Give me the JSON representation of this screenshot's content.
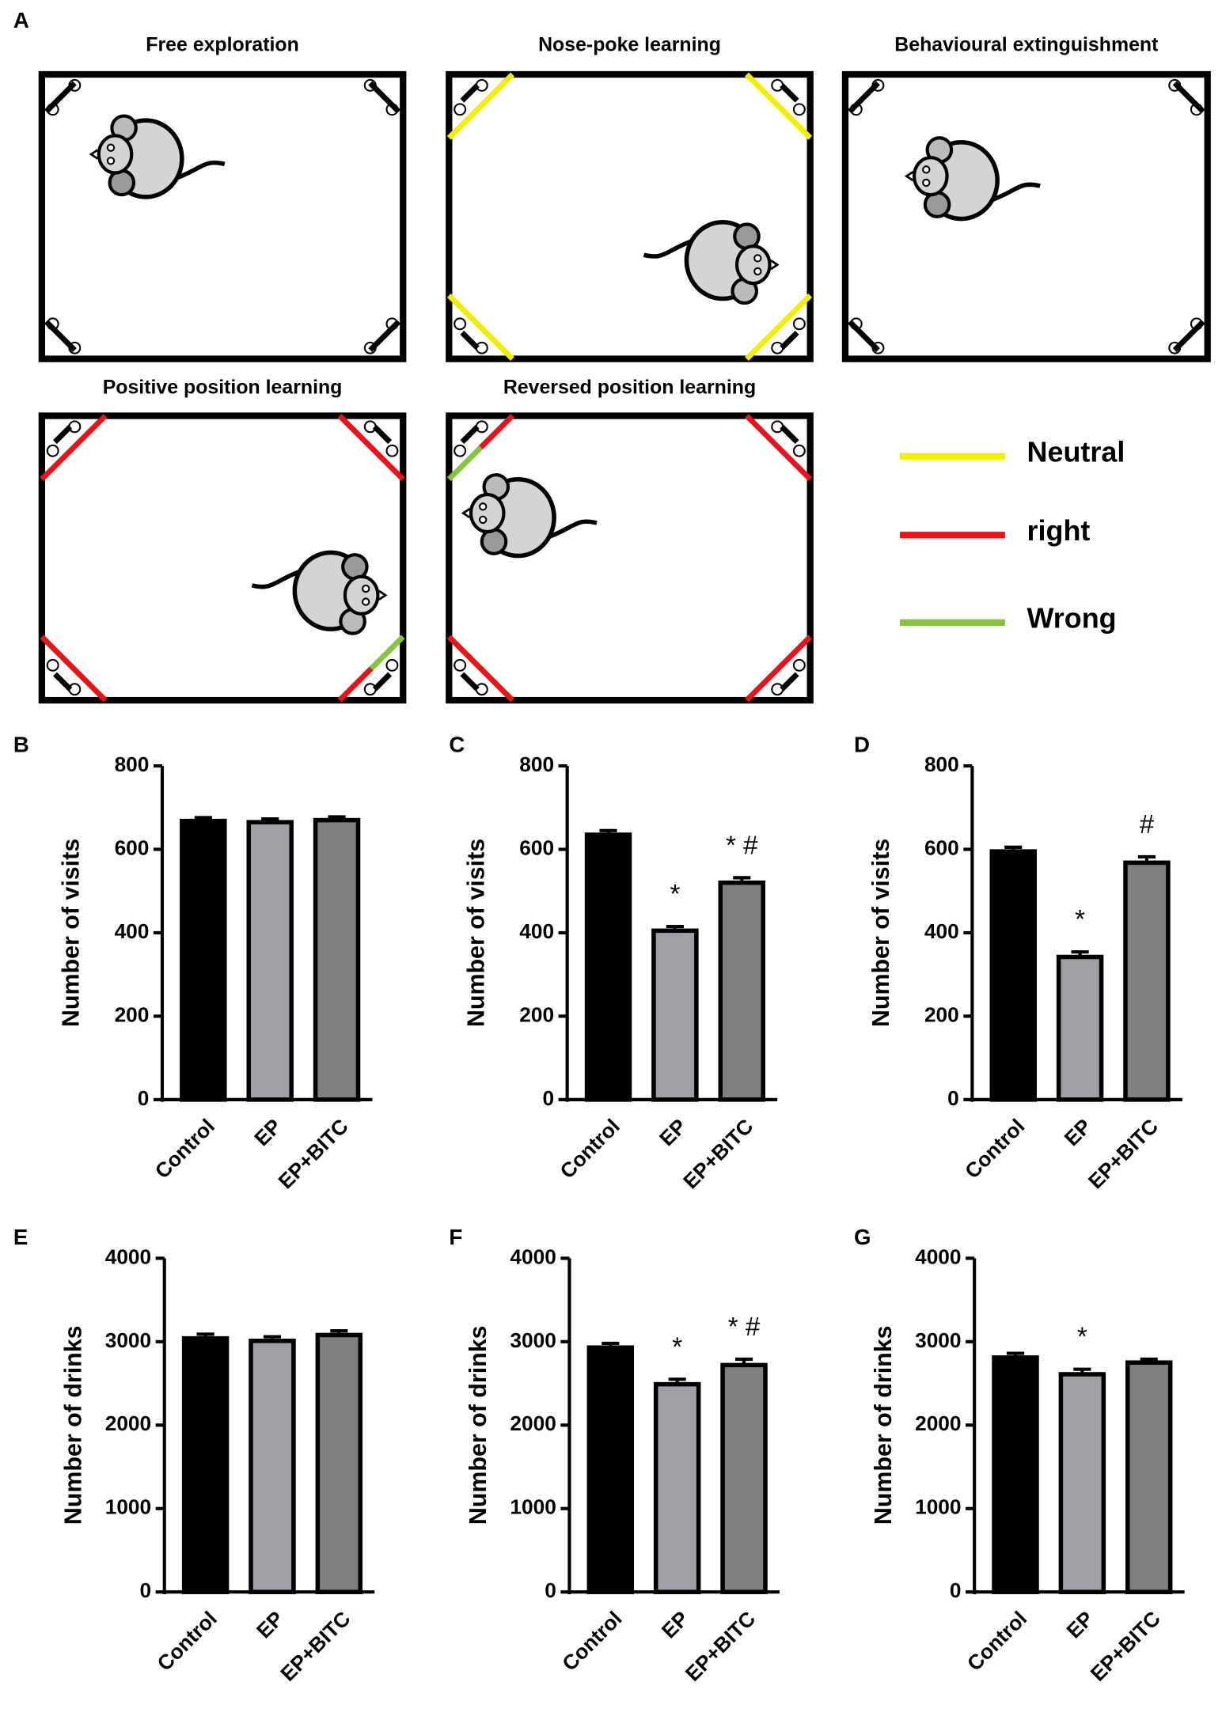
{
  "figure_label": "A",
  "diagram": {
    "panels": [
      {
        "title": "Free exploration"
      },
      {
        "title": "Nose-poke learning"
      },
      {
        "title": "Behavioural extinguishment"
      },
      {
        "title": "Positive position learning"
      },
      {
        "title": "Reversed position learning"
      }
    ],
    "legend": [
      {
        "label": "Neutral",
        "color": "#f2ee00"
      },
      {
        "label": "right",
        "color": "#e8141b"
      },
      {
        "label": "Wrong",
        "color": "#86c440"
      }
    ]
  },
  "chart_data": [
    {
      "type": "bar",
      "panel": "B",
      "ylabel": "Number of visits",
      "categories": [
        "Control",
        "EP",
        "EP+BITC"
      ],
      "values": [
        668,
        665,
        670
      ],
      "errors": [
        8,
        8,
        8
      ],
      "colors": [
        "#000000",
        "#a0a0a4",
        "#7f7f7f"
      ],
      "annotations": [
        null,
        null,
        null
      ],
      "ylim": [
        0,
        800
      ],
      "yticks": [
        0,
        200,
        400,
        600,
        800
      ]
    },
    {
      "type": "bar",
      "panel": "C",
      "ylabel": "Number of visits",
      "categories": [
        "Control",
        "EP",
        "EP+BITC"
      ],
      "values": [
        635,
        405,
        520
      ],
      "errors": [
        10,
        10,
        12
      ],
      "colors": [
        "#000000",
        "#a0a0a4",
        "#7f7f7f"
      ],
      "annotations": [
        null,
        "*",
        "* #"
      ],
      "ylim": [
        0,
        800
      ],
      "yticks": [
        0,
        200,
        400,
        600,
        800
      ]
    },
    {
      "type": "bar",
      "panel": "D",
      "ylabel": "Number of visits",
      "categories": [
        "Control",
        "EP",
        "EP+BITC"
      ],
      "values": [
        595,
        342,
        568
      ],
      "errors": [
        10,
        12,
        14
      ],
      "colors": [
        "#000000",
        "#a0a0a4",
        "#7f7f7f"
      ],
      "annotations": [
        null,
        "*",
        "#"
      ],
      "ylim": [
        0,
        800
      ],
      "yticks": [
        0,
        200,
        400,
        600,
        800
      ]
    },
    {
      "type": "bar",
      "panel": "E",
      "ylabel": "Number of drinks",
      "categories": [
        "Control",
        "EP",
        "EP+BITC"
      ],
      "values": [
        3040,
        3010,
        3080
      ],
      "errors": [
        50,
        50,
        50
      ],
      "colors": [
        "#000000",
        "#a0a0a4",
        "#7f7f7f"
      ],
      "annotations": [
        null,
        null,
        null
      ],
      "ylim": [
        0,
        4000
      ],
      "yticks": [
        0,
        1000,
        2000,
        3000,
        4000
      ]
    },
    {
      "type": "bar",
      "panel": "F",
      "ylabel": "Number of drinks",
      "categories": [
        "Control",
        "EP",
        "EP+BITC"
      ],
      "values": [
        2930,
        2490,
        2720
      ],
      "errors": [
        50,
        60,
        70
      ],
      "colors": [
        "#000000",
        "#a0a0a4",
        "#7f7f7f"
      ],
      "annotations": [
        null,
        "*",
        "* #"
      ],
      "ylim": [
        0,
        4000
      ],
      "yticks": [
        0,
        1000,
        2000,
        3000,
        4000
      ]
    },
    {
      "type": "bar",
      "panel": "G",
      "ylabel": "Number of drinks",
      "categories": [
        "Control",
        "EP",
        "EP+BITC"
      ],
      "values": [
        2810,
        2610,
        2750
      ],
      "errors": [
        50,
        60,
        40
      ],
      "colors": [
        "#000000",
        "#a0a0a4",
        "#7f7f7f"
      ],
      "annotations": [
        null,
        "*",
        null
      ],
      "ylim": [
        0,
        4000
      ],
      "yticks": [
        0,
        1000,
        2000,
        3000,
        4000
      ]
    }
  ]
}
